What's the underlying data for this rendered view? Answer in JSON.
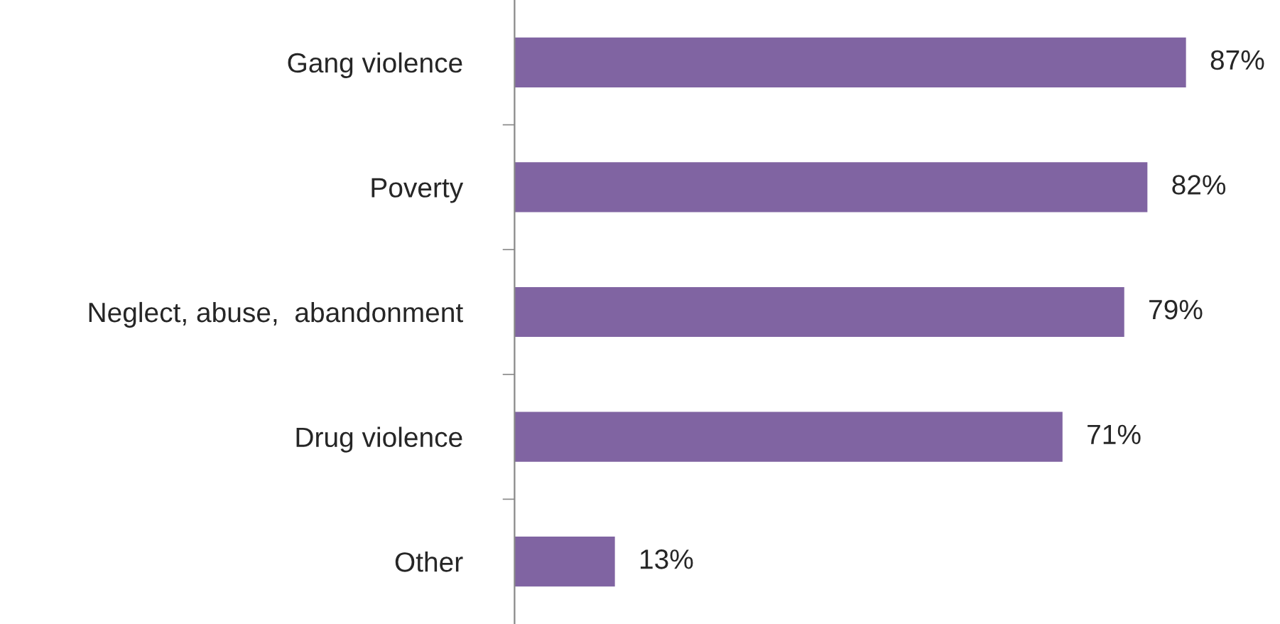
{
  "chart_data": {
    "type": "bar",
    "orientation": "horizontal",
    "categories": [
      "Gang violence",
      "Poverty",
      "Neglect, abuse,  abandonment",
      "Drug violence",
      "Other"
    ],
    "values": [
      87,
      82,
      79,
      71,
      13
    ],
    "color": "#8064a2",
    "data_labels": true,
    "value_labels": [
      "87%",
      "82%",
      "79%",
      "71%",
      "13%"
    ],
    "grid": false,
    "legend": false
  }
}
